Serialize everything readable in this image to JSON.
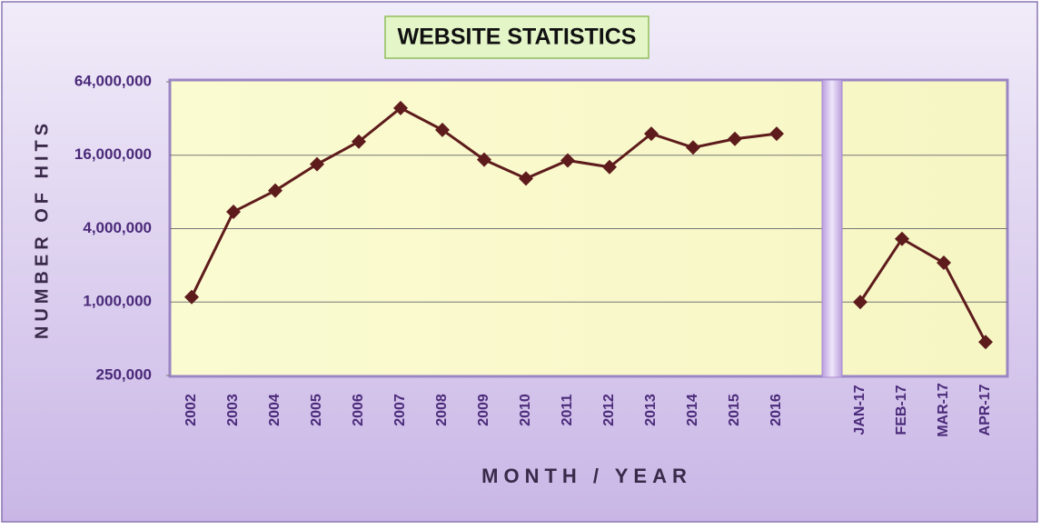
{
  "chart_data": {
    "type": "line",
    "title": "WEBSITE STATISTICS",
    "x_label": "MONTH / YEAR",
    "y_label": "NUMBER OF HITS",
    "categories": [
      "2002",
      "2003",
      "2004",
      "2005",
      "2006",
      "2007",
      "2008",
      "2009",
      "2010",
      "2011",
      "2012",
      "2013",
      "2014",
      "2015",
      "2016",
      null,
      "JAN-17",
      "FEB-17",
      "MAR-17",
      "APR-17"
    ],
    "series": [
      {
        "name": "Hits",
        "color": "#5e1b1b",
        "values": [
          1100000,
          5500000,
          8200000,
          13500000,
          20700000,
          39000000,
          25800000,
          14700000,
          10300000,
          14500000,
          12800000,
          24000000,
          18500000,
          21800000,
          24000000,
          null,
          1000000,
          3300000,
          2100000,
          470000
        ]
      }
    ],
    "log_scale": true,
    "ylim": [
      250000,
      64000000
    ],
    "yticks": [
      {
        "value": 250000,
        "label": "250,000"
      },
      {
        "value": 1000000,
        "label": "1,000,000"
      },
      {
        "value": 4000000,
        "label": "4,000,000"
      },
      {
        "value": 16000000,
        "label": "16,000,000"
      },
      {
        "value": 64000000,
        "label": "64,000,000"
      }
    ],
    "grid": true
  }
}
